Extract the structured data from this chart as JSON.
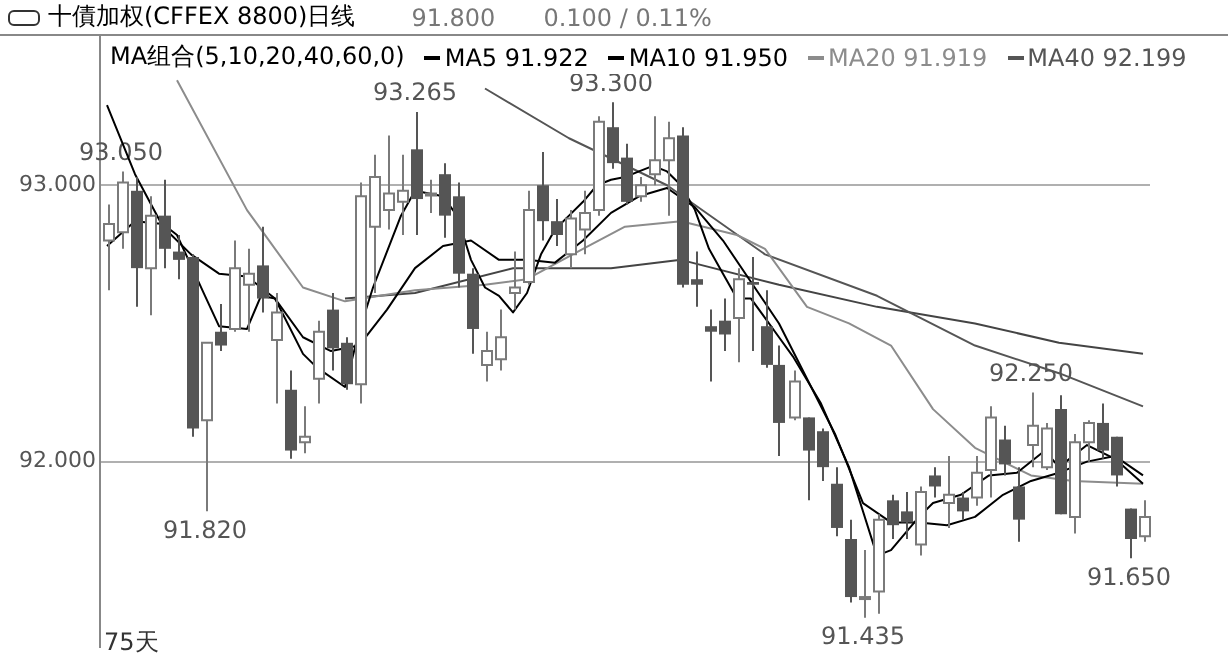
{
  "chart_data": {
    "type": "candlestick",
    "title": "十債加权(CFFEX 8800)日线",
    "legend_title": "MA组合(5,10,20,40,60,0)",
    "legend": "top",
    "grid": "y",
    "annotations": [
      "91.800",
      "0.100 / 0.11%",
      "75天",
      {
        "text": "93.050",
        "y": 93.05
      },
      {
        "text": "93.265",
        "y": 93.265
      },
      {
        "text": "93.300",
        "y": 93.3
      },
      {
        "text": "91.820",
        "y": 91.82
      },
      {
        "text": "91.435",
        "y": 91.435
      },
      {
        "text": "92.250",
        "y": 92.25
      },
      {
        "text": "91.650",
        "y": 91.65
      }
    ],
    "categories": [
      null,
      null,
      null,
      null,
      null,
      null,
      null,
      null,
      null,
      null,
      null,
      null,
      null,
      null,
      null,
      null,
      null,
      null,
      null,
      null,
      null,
      null,
      null,
      null,
      null,
      null,
      null,
      null,
      null,
      null,
      null,
      null,
      null,
      null,
      null,
      null,
      null,
      null,
      null,
      null,
      null,
      null,
      null,
      null,
      null,
      null,
      null,
      null,
      null,
      null,
      null,
      null,
      null,
      null,
      null,
      null,
      null,
      null,
      null,
      null,
      null,
      null,
      null,
      null,
      null,
      null,
      null,
      null,
      null,
      null,
      null,
      null,
      null,
      null,
      null
    ],
    "ohlc": [
      [
        92.8,
        92.93,
        92.62,
        92.86
      ],
      [
        92.83,
        93.05,
        92.77,
        93.01
      ],
      [
        92.98,
        93.03,
        92.56,
        92.7
      ],
      [
        92.7,
        92.96,
        92.53,
        92.89
      ],
      [
        92.89,
        93.02,
        92.7,
        92.77
      ],
      [
        92.76,
        92.82,
        92.66,
        92.73
      ],
      [
        92.74,
        92.75,
        92.09,
        92.12
      ],
      [
        92.15,
        92.43,
        91.82,
        92.43
      ],
      [
        92.47,
        92.57,
        92.4,
        92.42
      ],
      [
        92.48,
        92.8,
        92.47,
        92.7
      ],
      [
        92.64,
        92.77,
        92.47,
        92.68
      ],
      [
        92.71,
        92.85,
        92.54,
        92.59
      ],
      [
        92.44,
        92.61,
        92.21,
        92.54
      ],
      [
        92.26,
        92.33,
        92.01,
        92.04
      ],
      [
        92.07,
        92.2,
        92.03,
        92.09
      ],
      [
        92.3,
        92.51,
        92.21,
        92.47
      ],
      [
        92.55,
        92.61,
        92.33,
        92.41
      ],
      [
        92.43,
        92.45,
        92.26,
        92.28
      ],
      [
        92.28,
        93.01,
        92.21,
        92.96
      ],
      [
        92.85,
        93.11,
        92.61,
        93.03
      ],
      [
        92.91,
        93.18,
        92.84,
        92.97
      ],
      [
        92.94,
        93.11,
        92.82,
        92.98
      ],
      [
        93.13,
        93.265,
        92.82,
        92.95
      ],
      [
        92.97,
        93.02,
        92.9,
        92.97
      ],
      [
        93.04,
        93.08,
        92.81,
        92.89
      ],
      [
        92.96,
        93.01,
        92.63,
        92.68
      ],
      [
        92.68,
        92.7,
        92.39,
        92.48
      ],
      [
        92.35,
        92.47,
        92.29,
        92.4
      ],
      [
        92.37,
        92.55,
        92.33,
        92.45
      ],
      [
        92.61,
        92.76,
        92.55,
        92.63
      ],
      [
        92.65,
        92.98,
        92.64,
        92.91
      ],
      [
        93.0,
        93.12,
        92.8,
        92.87
      ],
      [
        92.87,
        92.95,
        92.78,
        92.82
      ],
      [
        92.75,
        92.91,
        92.7,
        92.88
      ],
      [
        92.84,
        92.98,
        92.75,
        92.9
      ],
      [
        92.91,
        93.25,
        92.89,
        93.23
      ],
      [
        93.21,
        93.3,
        93.06,
        93.08
      ],
      [
        93.1,
        93.15,
        92.93,
        92.94
      ],
      [
        92.96,
        93.03,
        92.94,
        93.0
      ],
      [
        93.04,
        93.25,
        93.0,
        93.09
      ],
      [
        93.09,
        93.23,
        92.89,
        93.17
      ],
      [
        93.18,
        93.21,
        92.63,
        92.64
      ],
      [
        92.66,
        92.76,
        92.56,
        92.64
      ],
      [
        92.49,
        92.55,
        92.29,
        92.47
      ],
      [
        92.51,
        92.59,
        92.4,
        92.46
      ],
      [
        92.52,
        92.7,
        92.36,
        92.66
      ],
      [
        92.65,
        92.74,
        92.4,
        92.64
      ],
      [
        92.49,
        92.62,
        92.34,
        92.35
      ],
      [
        92.35,
        92.42,
        92.02,
        92.14
      ],
      [
        92.16,
        92.33,
        92.15,
        92.29
      ],
      [
        92.16,
        92.16,
        91.86,
        92.04
      ],
      [
        92.11,
        92.12,
        91.93,
        91.98
      ],
      [
        91.92,
        91.98,
        91.73,
        91.76
      ],
      [
        91.72,
        91.79,
        91.49,
        91.51
      ],
      [
        91.51,
        91.68,
        91.435,
        91.51
      ],
      [
        91.53,
        91.81,
        91.45,
        91.79
      ],
      [
        91.86,
        91.88,
        91.72,
        91.77
      ],
      [
        91.82,
        91.89,
        91.72,
        91.78
      ],
      [
        91.7,
        91.91,
        91.66,
        91.89
      ],
      [
        91.95,
        91.98,
        91.87,
        91.91
      ],
      [
        91.85,
        92.02,
        91.76,
        91.88
      ],
      [
        91.87,
        91.89,
        91.79,
        91.82
      ],
      [
        91.87,
        92.02,
        91.84,
        91.96
      ],
      [
        91.97,
        92.2,
        91.87,
        92.16
      ],
      [
        92.08,
        92.13,
        91.95,
        91.99
      ],
      [
        91.91,
        91.98,
        91.71,
        91.79
      ],
      [
        92.06,
        92.25,
        91.98,
        92.13
      ],
      [
        91.98,
        92.14,
        91.97,
        92.12
      ],
      [
        92.19,
        92.24,
        91.81,
        91.81
      ],
      [
        91.8,
        92.1,
        91.74,
        92.07
      ],
      [
        92.07,
        92.15,
        92.0,
        92.14
      ],
      [
        92.14,
        92.21,
        92.01,
        92.04
      ],
      [
        92.09,
        92.09,
        91.91,
        91.95
      ],
      [
        91.83,
        91.83,
        91.65,
        91.72
      ],
      [
        91.73,
        91.86,
        91.71,
        91.8
      ]
    ],
    "series": [
      {
        "name": "MA5 91.922",
        "color": "#000000",
        "type": "line",
        "values": [
          92.78,
          null,
          92.87,
          null,
          92.86,
          92.82,
          null,
          92.6,
          92.49,
          null,
          92.48,
          92.6,
          92.59,
          null,
          92.39,
          92.34,
          null,
          92.27,
          92.47,
          92.63,
          null,
          92.89,
          92.98,
          null,
          92.96,
          92.89,
          92.73,
          92.63,
          92.6,
          92.54,
          92.61,
          92.75,
          92.84,
          92.89,
          92.94,
          93.0,
          93.02,
          93.03,
          93.05,
          93.07,
          93.05,
          93.0,
          92.91,
          92.77,
          92.68,
          92.59,
          92.59,
          92.52,
          92.45,
          92.38,
          null,
          92.21,
          null,
          91.98,
          null,
          91.66,
          91.68,
          null,
          91.8,
          91.85,
          null,
          91.88,
          null,
          91.95,
          null,
          91.96,
          null,
          92.04,
          91.98,
          null,
          92.06,
          null,
          92.01,
          null,
          91.92
        ]
      },
      {
        "name": "MA10 91.950",
        "color": "#000000",
        "type": "line",
        "values": [
          93.29,
          null,
          93.04,
          null,
          92.85,
          null,
          92.75,
          null,
          92.68,
          null,
          92.67,
          null,
          92.59,
          null,
          92.45,
          null,
          92.4,
          null,
          92.42,
          null,
          92.55,
          null,
          92.7,
          null,
          92.78,
          null,
          92.8,
          null,
          92.73,
          null,
          92.73,
          null,
          92.72,
          null,
          92.8,
          null,
          92.9,
          null,
          92.96,
          null,
          92.99,
          null,
          92.92,
          null,
          92.8,
          null,
          92.65,
          null,
          92.5,
          null,
          92.3,
          null,
          92.1,
          null,
          91.85,
          null,
          91.78,
          null,
          91.78,
          null,
          91.77,
          null,
          91.8,
          null,
          91.88,
          null,
          91.93,
          null,
          91.96,
          null,
          92.0,
          null,
          92.02,
          null,
          91.95
        ]
      },
      {
        "name": "MA20 91.919",
        "color": "#8c8c8c",
        "type": "line",
        "values": [
          null,
          null,
          null,
          null,
          null,
          93.38,
          null,
          null,
          null,
          null,
          92.91,
          null,
          null,
          null,
          92.63,
          null,
          null,
          92.58,
          null,
          null,
          null,
          null,
          92.62,
          null,
          null,
          null,
          null,
          92.64,
          null,
          null,
          92.66,
          null,
          null,
          null,
          92.77,
          null,
          null,
          92.85,
          null,
          null,
          null,
          92.87,
          null,
          null,
          null,
          92.82,
          null,
          92.77,
          null,
          null,
          92.56,
          null,
          null,
          92.5,
          null,
          null,
          92.42,
          null,
          null,
          92.19,
          null,
          null,
          92.05,
          null,
          null,
          null,
          91.95,
          null,
          null,
          91.93,
          null,
          null,
          null,
          null,
          91.92
        ]
      },
      {
        "name": "MA40 92.199",
        "color": "#555555",
        "type": "line",
        "values": [
          null,
          null,
          null,
          null,
          null,
          null,
          null,
          null,
          null,
          null,
          null,
          null,
          null,
          null,
          null,
          null,
          null,
          null,
          null,
          null,
          null,
          null,
          null,
          null,
          null,
          null,
          null,
          93.35,
          null,
          null,
          null,
          null,
          null,
          93.17,
          null,
          null,
          null,
          null,
          null,
          null,
          93.0,
          null,
          null,
          null,
          null,
          null,
          null,
          92.75,
          null,
          null,
          null,
          null,
          null,
          null,
          null,
          92.6,
          null,
          null,
          null,
          null,
          null,
          null,
          92.42,
          null,
          null,
          null,
          null,
          null,
          92.32,
          null,
          null,
          null,
          null,
          null,
          92.2
        ]
      },
      {
        "color": "#444444",
        "type": "line",
        "values": [
          null,
          null,
          null,
          null,
          null,
          null,
          null,
          null,
          null,
          null,
          null,
          null,
          null,
          null,
          null,
          null,
          null,
          92.59,
          null,
          null,
          null,
          null,
          92.61,
          null,
          null,
          null,
          null,
          null,
          null,
          92.7,
          null,
          null,
          null,
          null,
          null,
          null,
          92.7,
          null,
          null,
          null,
          null,
          92.73,
          null,
          null,
          null,
          null,
          null,
          null,
          92.64,
          null,
          null,
          null,
          null,
          null,
          null,
          92.56,
          null,
          null,
          null,
          null,
          null,
          null,
          92.5,
          null,
          null,
          null,
          null,
          null,
          92.43,
          null,
          null,
          null,
          null,
          null,
          92.39
        ]
      }
    ],
    "ylim": [
      91.33,
      93.54
    ],
    "yticks": [
      {
        "value": 92,
        "label": "92.000"
      },
      {
        "value": 93,
        "label": "93.000"
      }
    ]
  }
}
